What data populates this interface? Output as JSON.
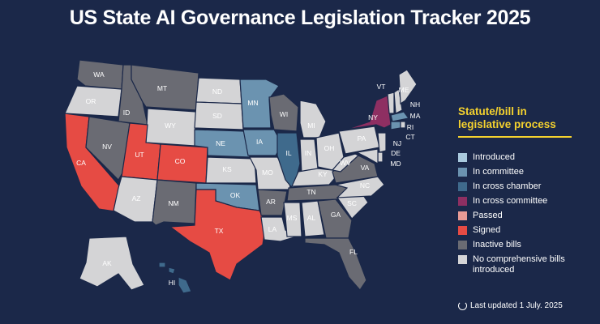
{
  "title": "US State AI Governance Legislation Tracker 2025",
  "legend": {
    "title": "Statute/bill in legislative process",
    "items": [
      {
        "key": "introduced",
        "label": "Introduced",
        "color": "#a9c9dd"
      },
      {
        "key": "committee",
        "label": "In committee",
        "color": "#6b93b0"
      },
      {
        "key": "cross_chamber",
        "label": "In cross chamber",
        "color": "#3f6a8c"
      },
      {
        "key": "cross_committee",
        "label": "In cross committee",
        "color": "#8e2f62"
      },
      {
        "key": "passed",
        "label": "Passed",
        "color": "#e89b96"
      },
      {
        "key": "signed",
        "label": "Signed",
        "color": "#e64b44"
      },
      {
        "key": "inactive",
        "label": "Inactive bills",
        "color": "#6a6b73"
      },
      {
        "key": "none",
        "label": "No comprehensive bills introduced",
        "color": "#d4d4d6"
      }
    ]
  },
  "status_colors": {
    "introduced": "#a9c9dd",
    "committee": "#6b93b0",
    "cross_chamber": "#3f6a8c",
    "cross_committee": "#8e2f62",
    "passed": "#e89b96",
    "signed": "#e64b44",
    "inactive": "#6a6b73",
    "none": "#d4d4d6"
  },
  "states": {
    "WA": "inactive",
    "OR": "none",
    "CA": "signed",
    "ID": "inactive",
    "NV": "inactive",
    "MT": "inactive",
    "WY": "none",
    "UT": "signed",
    "AZ": "none",
    "CO": "signed",
    "NM": "inactive",
    "ND": "none",
    "SD": "none",
    "NE": "committee",
    "KS": "none",
    "OK": "committee",
    "TX": "signed",
    "MN": "committee",
    "IA": "committee",
    "MO": "none",
    "AR": "inactive",
    "LA": "none",
    "WI": "inactive",
    "IL": "cross_chamber",
    "MI": "none",
    "IN": "none",
    "OH": "none",
    "KY": "none",
    "TN": "inactive",
    "MS": "none",
    "AL": "none",
    "GA": "inactive",
    "FL": "inactive",
    "SC": "none",
    "NC": "none",
    "VA": "inactive",
    "WV": "none",
    "PA": "none",
    "NY": "cross_committee",
    "VT": "none",
    "NH": "none",
    "ME": "none",
    "MA": "committee",
    "RI": "none",
    "CT": "committee",
    "NJ": "none",
    "DE": "none",
    "MD": "none",
    "AK": "none",
    "HI": "cross_chamber"
  },
  "updated": "Last updated 1 July. 2025"
}
